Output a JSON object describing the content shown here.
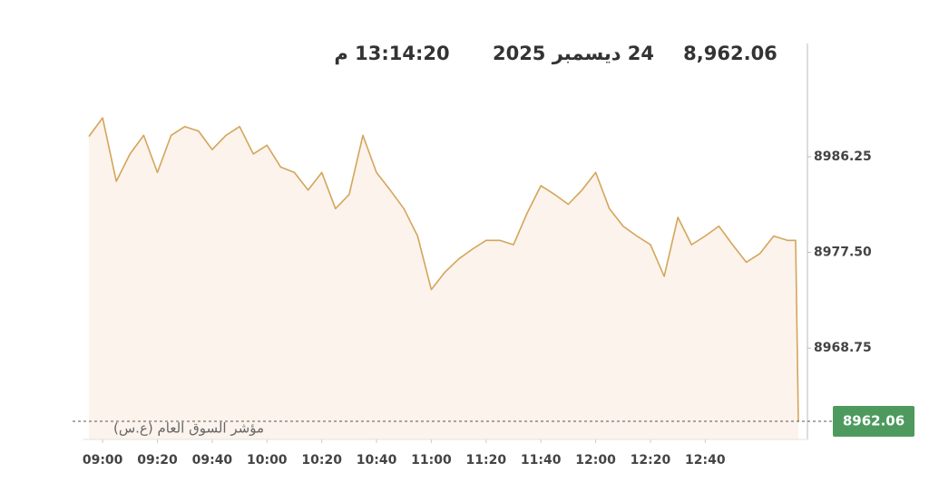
{
  "chart_data": {
    "type": "line",
    "price": {
      "value": 8962.06,
      "label": "8,962.06"
    },
    "date": "24 ديسمبر 2025",
    "time": "13:14:20 م",
    "series_label": "مؤشر السوق العام (ع.س)",
    "color": "#d4a55a",
    "fill": "#fbf3ec",
    "x": [
      "08:55",
      "09:00",
      "09:05",
      "09:10",
      "09:15",
      "09:20",
      "09:25",
      "09:30",
      "09:35",
      "09:40",
      "09:45",
      "09:50",
      "09:55",
      "10:00",
      "10:05",
      "10:10",
      "10:15",
      "10:20",
      "10:25",
      "10:30",
      "10:35",
      "10:40",
      "10:45",
      "10:50",
      "10:55",
      "11:00",
      "11:05",
      "11:10",
      "11:15",
      "11:20",
      "11:25",
      "11:30",
      "11:35",
      "11:40",
      "11:45",
      "11:50",
      "11:55",
      "12:00",
      "12:05",
      "12:10",
      "12:15",
      "12:20",
      "12:25",
      "12:30",
      "12:35",
      "12:40",
      "12:45",
      "12:50",
      "12:55",
      "13:00",
      "13:05",
      "13:10",
      "13:13",
      "13:14"
    ],
    "values": [
      8988.1,
      8989.8,
      8984.0,
      8986.5,
      8988.2,
      8984.8,
      8988.2,
      8989.0,
      8988.6,
      8986.9,
      8988.2,
      8989.0,
      8986.5,
      8987.3,
      8985.3,
      8984.8,
      8983.2,
      8984.8,
      8981.5,
      8982.8,
      8988.2,
      8984.8,
      8983.2,
      8981.5,
      8979.0,
      8974.1,
      8975.7,
      8976.9,
      8977.8,
      8978.6,
      8978.6,
      8978.2,
      8981.1,
      8983.6,
      8982.8,
      8981.9,
      8983.2,
      8984.8,
      8981.5,
      8979.9,
      8979.0,
      8978.2,
      8975.3,
      8980.7,
      8978.2,
      8979.0,
      8979.9,
      8978.2,
      8976.6,
      8977.4,
      8979.0,
      8978.6,
      8978.6,
      8962.06
    ],
    "xlim": [
      "08:53",
      "13:14"
    ],
    "xticks": [
      "09:00",
      "09:20",
      "09:40",
      "10:00",
      "10:20",
      "10:40",
      "11:00",
      "11:20",
      "11:40",
      "12:00",
      "12:20",
      "12:40"
    ],
    "ylim": [
      8960.4,
      8996.6
    ],
    "yticks": [
      8968.75,
      {
        "value": 8977.5,
        "label": "8977.50"
      },
      8986.25
    ],
    "last_value": 8962.06,
    "last_color": "#4e9a5e"
  }
}
